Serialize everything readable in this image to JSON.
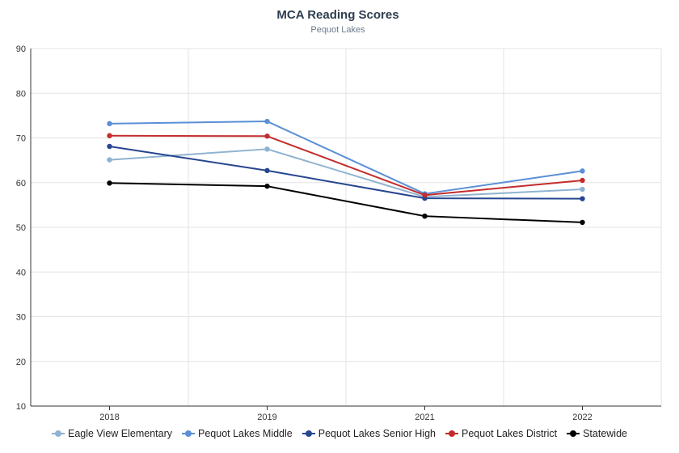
{
  "chart_data": {
    "type": "line",
    "title": "MCA Reading Scores",
    "subtitle": "Pequot Lakes",
    "xlabel": "",
    "ylabel": "",
    "categories": [
      "2018",
      "2019",
      "2021",
      "2022"
    ],
    "ylim": [
      10,
      90
    ],
    "yticks": [
      10,
      20,
      30,
      40,
      50,
      60,
      70,
      80,
      90
    ],
    "grid": true,
    "legend_position": "bottom",
    "series": [
      {
        "name": "Eagle View Elementary",
        "color": "#8fb3d0",
        "values": [
          65.1,
          67.5,
          56.8,
          58.5
        ]
      },
      {
        "name": "Pequot Lakes Middle",
        "color": "#5b8fd6",
        "values": [
          73.2,
          73.7,
          57.5,
          62.6
        ]
      },
      {
        "name": "Pequot Lakes Senior High",
        "color": "#274690",
        "values": [
          68.1,
          62.7,
          56.5,
          56.4
        ]
      },
      {
        "name": "Pequot Lakes District",
        "color": "#c42c2c",
        "values": [
          70.5,
          70.4,
          57.2,
          60.5
        ]
      },
      {
        "name": "Statewide",
        "color": "#000000",
        "values": [
          59.9,
          59.2,
          52.5,
          51.1
        ]
      }
    ]
  }
}
